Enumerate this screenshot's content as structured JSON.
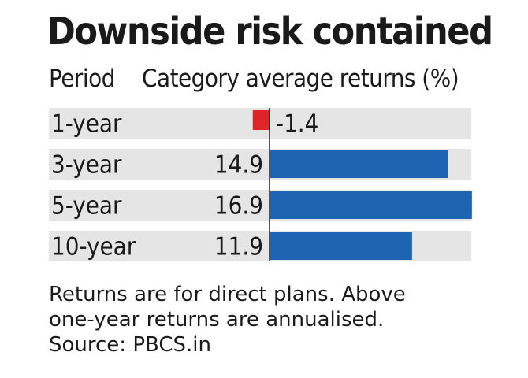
{
  "title": "Downside risk contained",
  "header": {
    "period": "Period",
    "category": "Category average returns (%)"
  },
  "chart_data": {
    "type": "bar",
    "orientation": "horizontal",
    "title": "Downside risk contained",
    "categories": [
      "1-year",
      "3-year",
      "5-year",
      "10-year"
    ],
    "values": [
      -1.4,
      14.9,
      16.9,
      11.9
    ],
    "labels": [
      "-1.4",
      "14.9",
      "16.9",
      "11.9"
    ],
    "xlabel": "Category average returns (%)",
    "ylabel": "Period",
    "xlim": [
      -2.5,
      17
    ],
    "colors": {
      "positive": "#1f64b3",
      "negative": "#e0242b",
      "track": "#e5e5e5",
      "axis": "#222222"
    }
  },
  "notes": {
    "line1": "Returns are for direct plans. Above",
    "line2": "one-year returns are annualised.",
    "line3": "Source: PBCS.in"
  }
}
